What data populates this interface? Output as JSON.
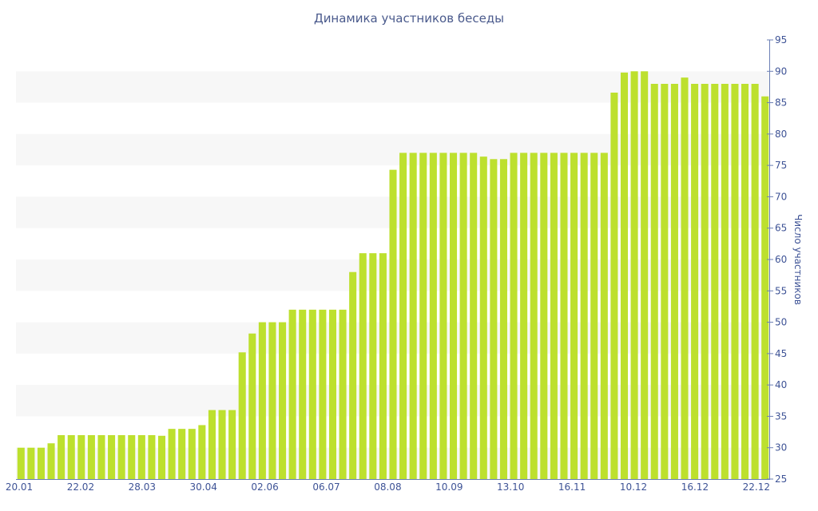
{
  "chart_data": {
    "type": "bar",
    "title": "Динамика участников беседы",
    "xlabel": "",
    "ylabel": "Число участников",
    "ylim": [
      25,
      95
    ],
    "y_ticks": [
      25,
      30,
      35,
      40,
      45,
      50,
      55,
      60,
      65,
      70,
      75,
      80,
      85,
      90,
      95
    ],
    "x_tick_labels": [
      "20.01",
      "22.02",
      "28.03",
      "30.04",
      "02.06",
      "06.07",
      "08.08",
      "10.09",
      "13.10",
      "16.11",
      "10.12",
      "16.12",
      "22.12"
    ],
    "y_axis_side": "right",
    "grid": "alternating horizontal bands",
    "bar_color": "#bde02e",
    "values": [
      30,
      30,
      30,
      30.7,
      32,
      32,
      32,
      32,
      32,
      32,
      32,
      32,
      32,
      32,
      31.9,
      33,
      33,
      33,
      33.6,
      36,
      36,
      36,
      45.2,
      48.2,
      50,
      50,
      50,
      52,
      52,
      52,
      52,
      52,
      52,
      58,
      61,
      61,
      61,
      74.3,
      77,
      77,
      77,
      77,
      77,
      77,
      77,
      77,
      76.4,
      76,
      76,
      77,
      77,
      77,
      77,
      77,
      77,
      77,
      77,
      77,
      77,
      86.6,
      89.8,
      90,
      90,
      88,
      88,
      88,
      89,
      88,
      88,
      88,
      88,
      88,
      88,
      88,
      86
    ]
  }
}
